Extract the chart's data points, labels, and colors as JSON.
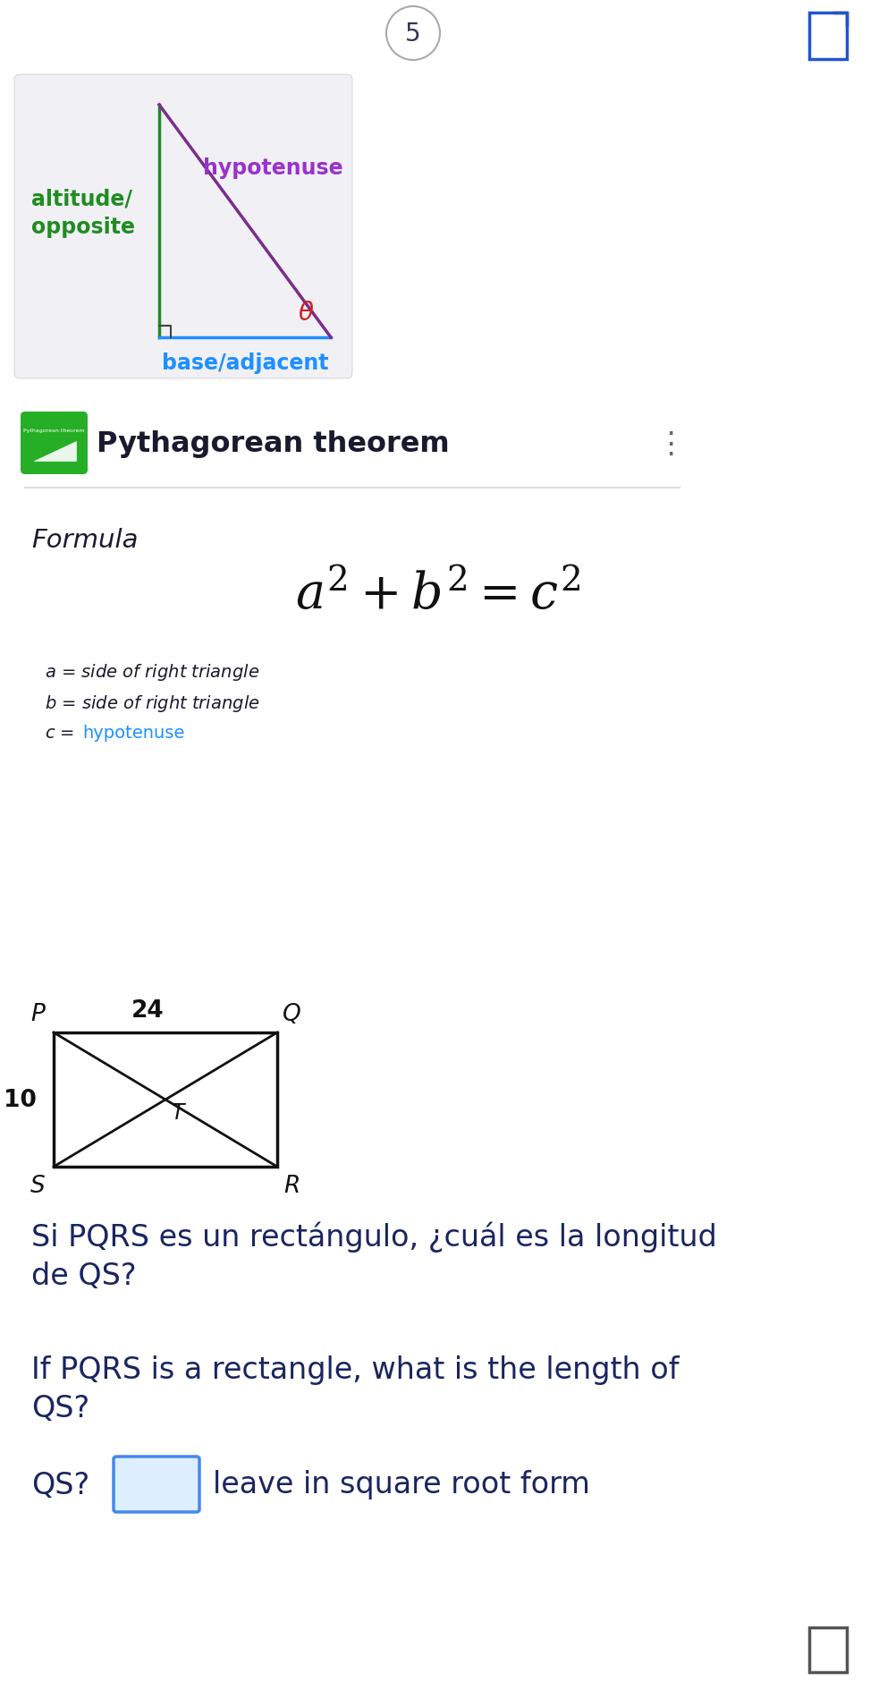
{
  "bg_color": "#ffffff",
  "page_num": "5",
  "triangle_bg": "#f0f0f5",
  "triangle_vertical_color": "#228B22",
  "triangle_hyp_color": "#7B2D8B",
  "triangle_base_color": "#1E90FF",
  "altitude_label": "altitude/\nopposite",
  "altitude_color": "#228B22",
  "hypotenuse_label": "hypotenuse",
  "hypotenuse_label_color": "#9932CC",
  "base_label": "base/adjacent",
  "base_label_color": "#1E90FF",
  "theta_color": "#cc2222",
  "theorem_title": "Pythagorean theorem",
  "theorem_title_color": "#1a1a2e",
  "formula_label": "Formula",
  "formula_color": "#1a1a2e",
  "var_c_color": "#1E90FF",
  "rect_line_color": "#111111",
  "question_spanish": "Si PQRS es un rectángulo, ¿cuál es la longitud\nde QS?",
  "question_english": "If PQRS is a rectangle, what is the length of\nQS?",
  "answer_label": "leave in square root form",
  "question_color": "#1a2560",
  "ans_border_color": "#4488ee",
  "ans_fill_color": "#ddeeff"
}
